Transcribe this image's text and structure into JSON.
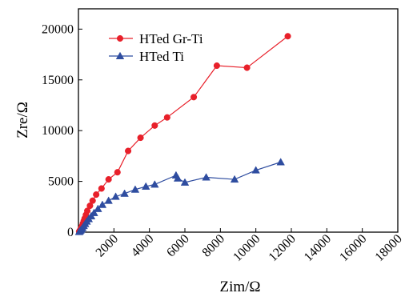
{
  "chart_data": {
    "type": "scatter",
    "xlabel": "Zim/Ω",
    "ylabel": "Zre/Ω",
    "xlim": [
      0,
      18000
    ],
    "ylim": [
      0,
      22000
    ],
    "x_ticks": [
      2000,
      4000,
      6000,
      8000,
      10000,
      12000,
      14000,
      16000,
      18000
    ],
    "y_ticks": [
      0,
      5000,
      10000,
      15000,
      20000
    ],
    "legend_position": "top-left",
    "series": [
      {
        "name": "HTed Gr-Ti",
        "color": "#e8202a",
        "marker": "circle",
        "points": [
          [
            40,
            60
          ],
          [
            80,
            170
          ],
          [
            120,
            300
          ],
          [
            160,
            420
          ],
          [
            200,
            600
          ],
          [
            250,
            850
          ],
          [
            300,
            1100
          ],
          [
            350,
            1350
          ],
          [
            420,
            1700
          ],
          [
            500,
            2100
          ],
          [
            650,
            2600
          ],
          [
            800,
            3100
          ],
          [
            1000,
            3700
          ],
          [
            1300,
            4300
          ],
          [
            1700,
            5200
          ],
          [
            2200,
            5900
          ],
          [
            2800,
            8000
          ],
          [
            3500,
            9300
          ],
          [
            4300,
            10500
          ],
          [
            5000,
            11300
          ],
          [
            6500,
            13300
          ],
          [
            7800,
            16400
          ],
          [
            9500,
            16200
          ],
          [
            11800,
            19300
          ]
        ]
      },
      {
        "name": "HTed Ti",
        "color": "#2f4da0",
        "marker": "triangle",
        "points": [
          [
            40,
            30
          ],
          [
            80,
            100
          ],
          [
            120,
            180
          ],
          [
            170,
            280
          ],
          [
            230,
            420
          ],
          [
            300,
            620
          ],
          [
            380,
            820
          ],
          [
            470,
            1050
          ],
          [
            580,
            1300
          ],
          [
            720,
            1580
          ],
          [
            880,
            1900
          ],
          [
            1100,
            2300
          ],
          [
            1350,
            2700
          ],
          [
            1700,
            3100
          ],
          [
            2100,
            3500
          ],
          [
            2600,
            3800
          ],
          [
            3200,
            4200
          ],
          [
            3800,
            4500
          ],
          [
            4300,
            4700
          ],
          [
            5500,
            5600
          ],
          [
            5600,
            5300
          ],
          [
            6000,
            4900
          ],
          [
            7200,
            5400
          ],
          [
            8800,
            5200
          ],
          [
            10000,
            6100
          ],
          [
            11400,
            6900
          ]
        ]
      }
    ]
  }
}
